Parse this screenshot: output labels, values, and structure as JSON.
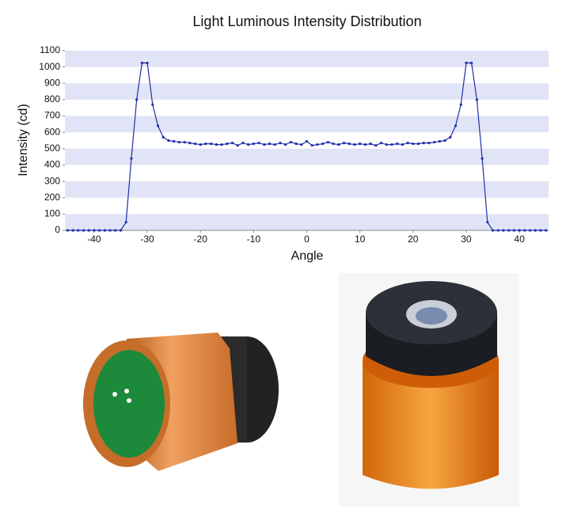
{
  "chart_data": {
    "type": "line",
    "title": "Light Luminous Intensity Distribution",
    "x_label": "Angle",
    "y_label": "Intensity (cd)",
    "x": [
      -45,
      -44,
      -43,
      -42,
      -41,
      -40,
      -39,
      -38,
      -37,
      -36,
      -35,
      -34,
      -33,
      -32,
      -31,
      -30,
      -29,
      -28,
      -27,
      -26,
      -25,
      -24,
      -23,
      -22,
      -21,
      -20,
      -19,
      -18,
      -17,
      -16,
      -15,
      -14,
      -13,
      -12,
      -11,
      -10,
      -9,
      -8,
      -7,
      -6,
      -5,
      -4,
      -3,
      -2,
      -1,
      0,
      1,
      2,
      3,
      4,
      5,
      6,
      7,
      8,
      9,
      10,
      11,
      12,
      13,
      14,
      15,
      16,
      17,
      18,
      19,
      20,
      21,
      22,
      23,
      24,
      25,
      26,
      27,
      28,
      29,
      30,
      31,
      32,
      33,
      34,
      35,
      36,
      37,
      38,
      39,
      40,
      41,
      42,
      43,
      44,
      45
    ],
    "series": [
      {
        "color": "#1f2fa8",
        "values": [
          0,
          0,
          0,
          0,
          0,
          0,
          0,
          0,
          0,
          0,
          0,
          50,
          440,
          800,
          1025,
          1025,
          770,
          640,
          570,
          550,
          545,
          540,
          540,
          535,
          530,
          525,
          530,
          530,
          525,
          525,
          530,
          535,
          520,
          535,
          525,
          530,
          535,
          525,
          530,
          525,
          535,
          525,
          540,
          530,
          525,
          545,
          520,
          525,
          530,
          540,
          530,
          525,
          535,
          530,
          525,
          530,
          525,
          530,
          520,
          535,
          525,
          525,
          530,
          525,
          535,
          530,
          530,
          535,
          535,
          540,
          545,
          550,
          570,
          640,
          770,
          1025,
          1025,
          800,
          440,
          50,
          0,
          0,
          0,
          0,
          0,
          0,
          0,
          0,
          0,
          0,
          0
        ]
      }
    ],
    "xlim": [
      -45.5,
      45.5
    ],
    "xticks": [
      -40,
      -30,
      -20,
      -10,
      0,
      10,
      20,
      30,
      40
    ],
    "ylim": [
      0,
      1100
    ],
    "yticks": [
      0,
      100,
      200,
      300,
      400,
      500,
      600,
      700,
      800,
      900,
      1000,
      1100
    ],
    "grid": "bands",
    "band_color": "#e1e4f6"
  }
}
